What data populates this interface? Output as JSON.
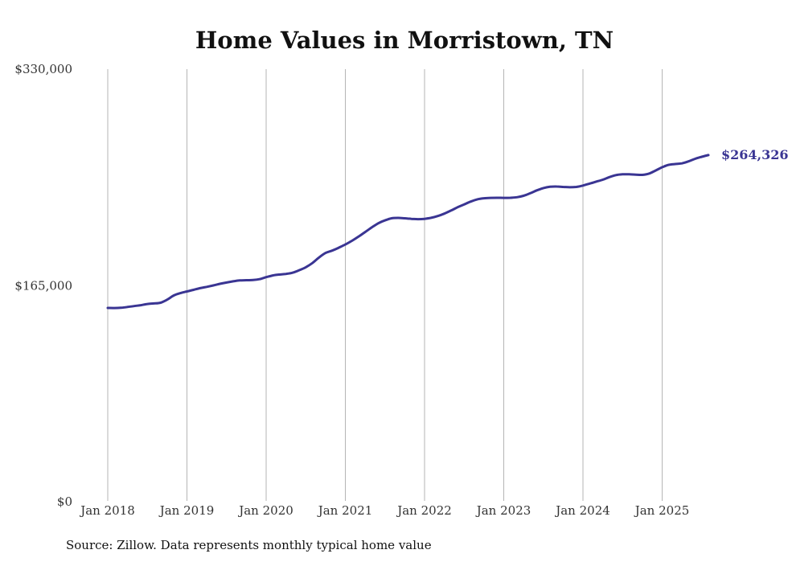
{
  "chart_data": {
    "type": "line",
    "title": "Home Values in Morristown, TN",
    "source": "Source: Zillow. Data represents monthly typical home value",
    "ylim": [
      0,
      330000
    ],
    "y_ticks": [
      0,
      165000,
      330000
    ],
    "y_tick_labels": [
      "$0",
      "$165,000",
      "$330,000"
    ],
    "x_tick_labels": [
      "Jan 2018",
      "Jan 2019",
      "Jan 2020",
      "Jan 2021",
      "Jan 2022",
      "Jan 2023",
      "Jan 2024",
      "Jan 2025"
    ],
    "grid": "vertical",
    "end_label": "$264,326",
    "line_color": "#3a3593",
    "series": [
      {
        "points": [
          [
            "2018-01",
            147500
          ],
          [
            "2018-02",
            147400
          ],
          [
            "2018-03",
            147600
          ],
          [
            "2018-04",
            148200
          ],
          [
            "2018-05",
            148900
          ],
          [
            "2018-06",
            149600
          ],
          [
            "2018-07",
            150500
          ],
          [
            "2018-08",
            150900
          ],
          [
            "2018-09",
            151500
          ],
          [
            "2018-10",
            153800
          ],
          [
            "2018-11",
            157000
          ],
          [
            "2018-12",
            158800
          ],
          [
            "2019-01",
            160100
          ],
          [
            "2019-02",
            161300
          ],
          [
            "2019-03",
            162600
          ],
          [
            "2019-04",
            163600
          ],
          [
            "2019-05",
            164700
          ],
          [
            "2019-06",
            165900
          ],
          [
            "2019-07",
            166900
          ],
          [
            "2019-08",
            167800
          ],
          [
            "2019-09",
            168500
          ],
          [
            "2019-10",
            168700
          ],
          [
            "2019-11",
            168800
          ],
          [
            "2019-12",
            169500
          ],
          [
            "2020-01",
            171000
          ],
          [
            "2020-02",
            172300
          ],
          [
            "2020-03",
            173000
          ],
          [
            "2020-04",
            173500
          ],
          [
            "2020-05",
            174400
          ],
          [
            "2020-06",
            176300
          ],
          [
            "2020-07",
            178600
          ],
          [
            "2020-08",
            181800
          ],
          [
            "2020-09",
            186000
          ],
          [
            "2020-10",
            189500
          ],
          [
            "2020-11",
            191300
          ],
          [
            "2020-12",
            193500
          ],
          [
            "2021-01",
            196000
          ],
          [
            "2021-02",
            198800
          ],
          [
            "2021-03",
            202000
          ],
          [
            "2021-04",
            205500
          ],
          [
            "2021-05",
            209000
          ],
          [
            "2021-06",
            212200
          ],
          [
            "2021-07",
            214400
          ],
          [
            "2021-08",
            216000
          ],
          [
            "2021-09",
            216300
          ],
          [
            "2021-10",
            216000
          ],
          [
            "2021-11",
            215600
          ],
          [
            "2021-12",
            215300
          ],
          [
            "2022-01",
            215600
          ],
          [
            "2022-02",
            216400
          ],
          [
            "2022-03",
            217700
          ],
          [
            "2022-04",
            219600
          ],
          [
            "2022-05",
            221900
          ],
          [
            "2022-06",
            224400
          ],
          [
            "2022-07",
            226600
          ],
          [
            "2022-08",
            228800
          ],
          [
            "2022-09",
            230500
          ],
          [
            "2022-10",
            231300
          ],
          [
            "2022-11",
            231600
          ],
          [
            "2022-12",
            231700
          ],
          [
            "2023-01",
            231600
          ],
          [
            "2023-02",
            231700
          ],
          [
            "2023-03",
            232100
          ],
          [
            "2023-04",
            233200
          ],
          [
            "2023-05",
            235100
          ],
          [
            "2023-06",
            237300
          ],
          [
            "2023-07",
            239100
          ],
          [
            "2023-08",
            240100
          ],
          [
            "2023-09",
            240300
          ],
          [
            "2023-10",
            240000
          ],
          [
            "2023-11",
            239700
          ],
          [
            "2023-12",
            240000
          ],
          [
            "2024-01",
            241000
          ],
          [
            "2024-02",
            242500
          ],
          [
            "2024-03",
            244000
          ],
          [
            "2024-04",
            245500
          ],
          [
            "2024-05",
            247500
          ],
          [
            "2024-06",
            249000
          ],
          [
            "2024-07",
            249600
          ],
          [
            "2024-08",
            249600
          ],
          [
            "2024-09",
            249300
          ],
          [
            "2024-10",
            249200
          ],
          [
            "2024-11",
            250200
          ],
          [
            "2024-12",
            252500
          ],
          [
            "2025-01",
            255000
          ],
          [
            "2025-02",
            256900
          ],
          [
            "2025-03",
            257500
          ],
          [
            "2025-04",
            258000
          ],
          [
            "2025-05",
            259500
          ],
          [
            "2025-06",
            261500
          ],
          [
            "2025-07",
            263000
          ],
          [
            "2025-08",
            264326
          ]
        ]
      }
    ]
  }
}
